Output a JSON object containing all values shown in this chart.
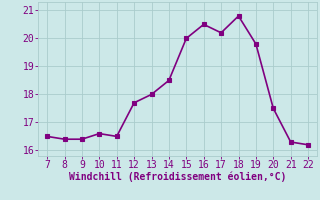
{
  "x": [
    7,
    8,
    9,
    10,
    11,
    12,
    13,
    14,
    15,
    16,
    17,
    18,
    19,
    20,
    21,
    22
  ],
  "y": [
    16.5,
    16.4,
    16.4,
    16.6,
    16.5,
    17.7,
    18.0,
    18.5,
    20.0,
    20.5,
    20.2,
    20.8,
    19.8,
    17.5,
    16.3,
    16.2
  ],
  "line_color": "#800080",
  "marker": "s",
  "marker_size": 2.5,
  "bg_color": "#cce8e8",
  "grid_color": "#aacccc",
  "xlabel": "Windchill (Refroidissement éolien,°C)",
  "xlabel_color": "#800080",
  "tick_color": "#800080",
  "xlim": [
    6.5,
    22.5
  ],
  "ylim": [
    15.8,
    21.3
  ],
  "xticks": [
    7,
    8,
    9,
    10,
    11,
    12,
    13,
    14,
    15,
    16,
    17,
    18,
    19,
    20,
    21,
    22
  ],
  "yticks": [
    16,
    17,
    18,
    19,
    20,
    21
  ],
  "linewidth": 1.2,
  "marker_color": "#800080",
  "tick_fontsize": 7,
  "xlabel_fontsize": 7
}
